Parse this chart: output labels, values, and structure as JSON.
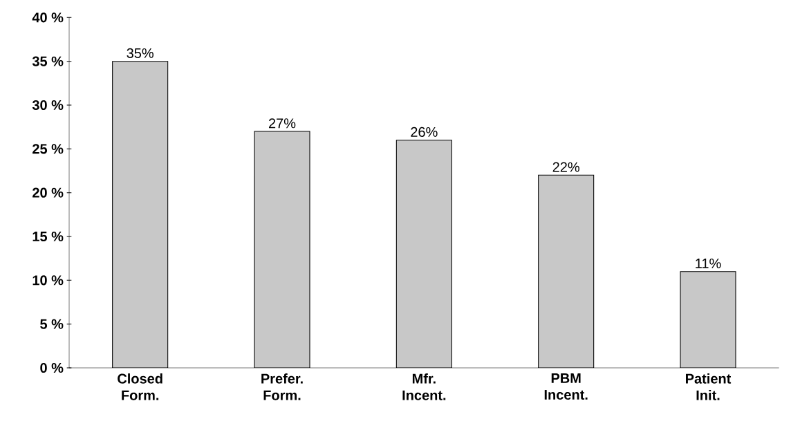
{
  "chart_data": {
    "type": "bar",
    "categories": [
      "Closed Form.",
      "Prefer. Form.",
      "Mfr. Incent.",
      "PBM Incent.",
      "Patient Init."
    ],
    "values": [
      35,
      27,
      26,
      22,
      11
    ],
    "value_labels": [
      "35%",
      "27%",
      "26%",
      "22%",
      "11%"
    ],
    "color": "#c8c8c8",
    "ylim": [
      0,
      40
    ],
    "yticks": [
      {
        "value": 0,
        "label": "0 %"
      },
      {
        "value": 5,
        "label": "5 %"
      },
      {
        "value": 10,
        "label": "10 %"
      },
      {
        "value": 15,
        "label": "15 %"
      },
      {
        "value": 20,
        "label": "20 %"
      },
      {
        "value": 25,
        "label": "25 %"
      },
      {
        "value": 30,
        "label": "30 %"
      },
      {
        "value": 35,
        "label": "35 %"
      },
      {
        "value": 40,
        "label": "40 %"
      }
    ],
    "grid": false
  }
}
